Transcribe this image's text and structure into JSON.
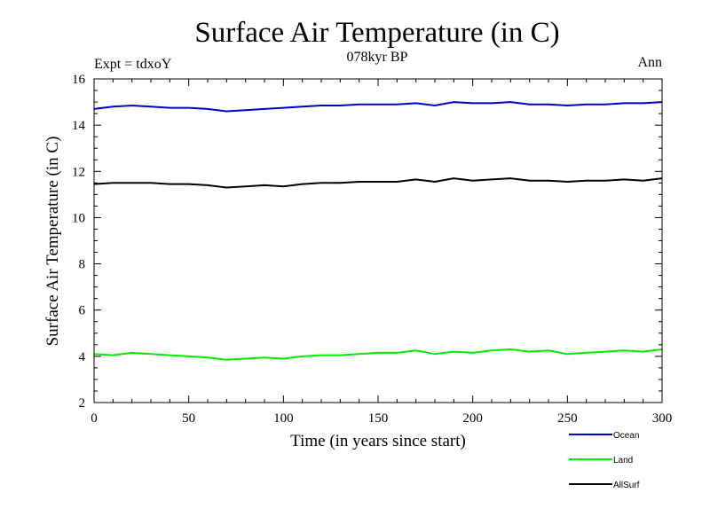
{
  "chart_data": {
    "type": "line",
    "title": "Surface Air Temperature (in C)",
    "subtitle": "078kyr BP",
    "left_label": "Expt = tdxoY",
    "right_label": "Ann",
    "xlabel": "Time (in years since start)",
    "ylabel": "Surface Air Temperature (in C)",
    "xlim": [
      0,
      300
    ],
    "ylim": [
      2,
      16
    ],
    "x_ticks": [
      0,
      50,
      100,
      150,
      200,
      250,
      300
    ],
    "y_ticks": [
      2,
      4,
      6,
      8,
      10,
      12,
      14,
      16
    ],
    "grid": false,
    "legend_position": "bottom-right",
    "series": [
      {
        "name": "Ocean",
        "color": "#0000cc",
        "x": [
          0,
          10,
          20,
          30,
          40,
          50,
          60,
          70,
          80,
          90,
          100,
          110,
          120,
          130,
          140,
          150,
          160,
          170,
          180,
          190,
          200,
          210,
          220,
          230,
          240,
          250,
          260,
          270,
          280,
          290,
          300
        ],
        "values": [
          14.7,
          14.8,
          14.85,
          14.8,
          14.75,
          14.75,
          14.7,
          14.6,
          14.65,
          14.7,
          14.75,
          14.8,
          14.85,
          14.85,
          14.9,
          14.9,
          14.9,
          14.95,
          14.85,
          15.0,
          14.95,
          14.95,
          15.0,
          14.9,
          14.9,
          14.85,
          14.9,
          14.9,
          14.95,
          14.95,
          15.0
        ]
      },
      {
        "name": "Land",
        "color": "#00ee00",
        "x": [
          0,
          10,
          20,
          30,
          40,
          50,
          60,
          70,
          80,
          90,
          100,
          110,
          120,
          130,
          140,
          150,
          160,
          170,
          180,
          190,
          200,
          210,
          220,
          230,
          240,
          250,
          260,
          270,
          280,
          290,
          300
        ],
        "values": [
          4.1,
          4.05,
          4.15,
          4.1,
          4.05,
          4.0,
          3.95,
          3.85,
          3.9,
          3.95,
          3.9,
          4.0,
          4.05,
          4.05,
          4.1,
          4.15,
          4.15,
          4.25,
          4.1,
          4.2,
          4.15,
          4.25,
          4.3,
          4.2,
          4.25,
          4.1,
          4.15,
          4.2,
          4.25,
          4.2,
          4.3
        ]
      },
      {
        "name": "AllSurf",
        "color": "#000000",
        "x": [
          0,
          10,
          20,
          30,
          40,
          50,
          60,
          70,
          80,
          90,
          100,
          110,
          120,
          130,
          140,
          150,
          160,
          170,
          180,
          190,
          200,
          210,
          220,
          230,
          240,
          250,
          260,
          270,
          280,
          290,
          300
        ],
        "values": [
          11.45,
          11.5,
          11.5,
          11.5,
          11.45,
          11.45,
          11.4,
          11.3,
          11.35,
          11.4,
          11.35,
          11.45,
          11.5,
          11.5,
          11.55,
          11.55,
          11.55,
          11.65,
          11.55,
          11.7,
          11.6,
          11.65,
          11.7,
          11.6,
          11.6,
          11.55,
          11.6,
          11.6,
          11.65,
          11.6,
          11.7
        ]
      }
    ]
  }
}
